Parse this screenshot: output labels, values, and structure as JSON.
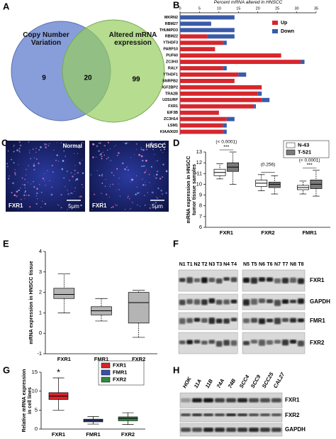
{
  "panel_labels": [
    "A",
    "B",
    "C",
    "D",
    "E",
    "F",
    "G",
    "H"
  ],
  "venn": {
    "sets": [
      {
        "label": "Copy Number Variation",
        "only": 9
      },
      {
        "label": "Altered mRNA expression",
        "only": 99
      }
    ],
    "both": 20
  },
  "micrographs": [
    {
      "title": "Normal",
      "stain": "FXR1",
      "scale": "5μm"
    },
    {
      "title": "HNSCC",
      "stain": "FXR1",
      "scale": "5μm"
    }
  ],
  "blot_f": {
    "lane_groups": [
      [
        "N1",
        "T1",
        "N2",
        "T2",
        "N3",
        "T3",
        "N4",
        "T4"
      ],
      [
        "N5",
        "T5",
        "N6",
        "T6",
        "N7",
        "T7",
        "N8",
        "T8"
      ]
    ],
    "rows": [
      "FXR1",
      "GAPDH",
      "FMR1",
      "FXR2"
    ]
  },
  "blot_h": {
    "lanes": [
      "HOK",
      "11A",
      "11B",
      "74A",
      "74B",
      "SCC4",
      "SCC9",
      "SCC25",
      "CAL27"
    ],
    "rows": [
      "FXR1",
      "FXR2",
      "GAPDH"
    ]
  },
  "chart_data": [
    {
      "type": "bar",
      "orientation": "horizontal",
      "stacked": true,
      "title": "Percent mRNA altered in HNSCC",
      "categories": [
        "MKRN2",
        "RBM27",
        "THUMPD3",
        "RBM22",
        "YTHDF3",
        "PARP10",
        "PUF60",
        "ZC3H3",
        "RALY",
        "YTHDF1",
        "SNRPB2",
        "IGF2BP2",
        "TRA2B",
        "U2SURP",
        "FXR1",
        "EIF3B",
        "ZC3H14",
        "LSM1",
        "KIAA0020"
      ],
      "series": [
        {
          "name": "Up",
          "color": "#d7262d",
          "values": [
            0,
            0,
            0,
            7,
            11,
            9,
            26,
            31,
            11,
            15,
            14,
            21,
            20,
            21,
            19,
            10,
            12,
            11,
            11
          ]
        },
        {
          "name": "Down",
          "color": "#3a5ba8",
          "values": [
            14,
            8,
            14,
            7,
            1,
            0,
            0,
            1,
            1,
            2,
            0,
            0,
            1,
            2,
            0.5,
            0,
            2,
            1,
            1
          ]
        }
      ],
      "xlim": [
        0,
        35
      ],
      "xticks": [
        0,
        5,
        10,
        15,
        20,
        25,
        30,
        35
      ],
      "legend": "upper right"
    },
    {
      "type": "box",
      "ylabel": "mRNA expression in HNSCC tumor tissue samples",
      "categories": [
        "FXR1",
        "FXR2",
        "FMR1"
      ],
      "series": [
        {
          "name": "N-43",
          "color": "#ffffff",
          "whisker_low": [
            10.5,
            9.4,
            9.1
          ],
          "q1": [
            10.8,
            9.8,
            9.5
          ],
          "median": [
            11.1,
            10.1,
            9.7
          ],
          "q3": [
            11.4,
            10.4,
            9.9
          ],
          "whisker_high": [
            11.9,
            10.9,
            10.3
          ]
        },
        {
          "name": "T-521",
          "color": "#7a7a7a",
          "whisker_low": [
            10.0,
            9.1,
            8.9
          ],
          "q1": [
            11.2,
            9.7,
            9.6
          ],
          "median": [
            11.6,
            10.0,
            10.0
          ],
          "q3": [
            12.0,
            10.2,
            10.4
          ],
          "whisker_high": [
            13.0,
            10.8,
            11.3
          ]
        }
      ],
      "p_values": [
        "(< 0.0001)",
        "(0.256)",
        "(< 0.0001)"
      ],
      "significance": [
        "***",
        null,
        "***"
      ],
      "ylim": [
        6,
        13
      ],
      "yticks": [
        6,
        7,
        8,
        9,
        10,
        11,
        12,
        13
      ],
      "legend": "upper right"
    },
    {
      "type": "box",
      "ylabel": "mRNA expression in HNSCC tissue",
      "categories": [
        "FXR1",
        "FMR1",
        "FXR2"
      ],
      "series": [
        {
          "color": "#b4b4b4",
          "whisker_low": [
            1.0,
            0.6,
            -0.2
          ],
          "q1": [
            1.7,
            0.9,
            0.5
          ],
          "median": [
            1.9,
            1.1,
            1.5
          ],
          "q3": [
            2.2,
            1.3,
            2.0
          ],
          "whisker_high": [
            2.9,
            1.7,
            2.1
          ]
        }
      ],
      "ylim": [
        -1,
        4
      ],
      "yticks": [
        -1,
        0,
        1,
        2,
        3,
        4
      ]
    },
    {
      "type": "box",
      "ylabel": "Relative mRNA expression in cell lines",
      "categories": [
        "FXR1",
        "FMR1",
        "FXR2"
      ],
      "colors": [
        "#d8232a",
        "#3b4fa8",
        "#2e8b3e"
      ],
      "series": [
        {
          "whisker_low": [
            5,
            1.3,
            1.2
          ],
          "q1": [
            7.8,
            1.9,
            2.2
          ],
          "median": [
            8.7,
            2.3,
            2.8
          ],
          "q3": [
            9.6,
            2.6,
            3.2
          ],
          "whisker_high": [
            13.5,
            3.3,
            4.3
          ]
        }
      ],
      "significance": [
        "*",
        null,
        null
      ],
      "ylim": [
        0,
        15
      ],
      "yticks": [
        0,
        5,
        10,
        15
      ],
      "legend": "upper right"
    }
  ]
}
